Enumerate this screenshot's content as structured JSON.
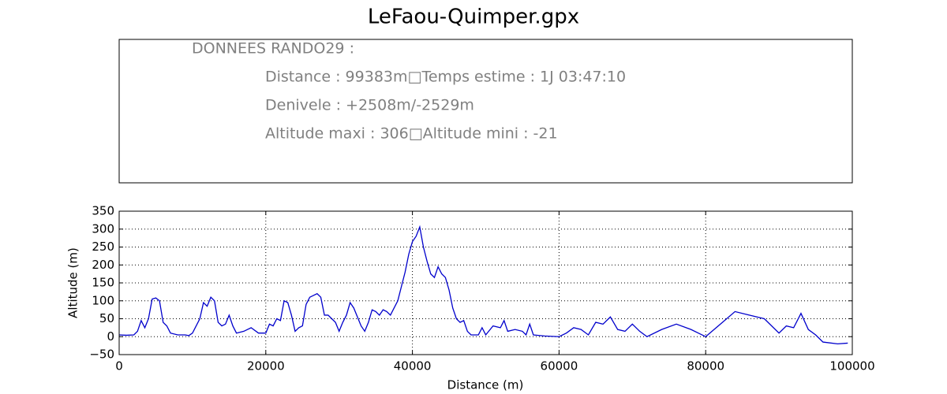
{
  "title": "LeFaou-Quimper.gpx",
  "info": {
    "heading": "DONNEES RANDO29  :",
    "lines": [
      "Distance : 99383m□Temps estime : 1J 03:47:10",
      "Denivele : +2508m/-2529m",
      "Altitude maxi : 306□Altitude mini : -21"
    ]
  },
  "chart_data": {
    "type": "line",
    "xlabel": "Distance (m)",
    "ylabel": "Altitude (m)",
    "color": "#0000cc",
    "grid": true,
    "xlim": [
      0,
      100000
    ],
    "ylim": [
      -50,
      350
    ],
    "xticks": [
      0,
      20000,
      40000,
      60000,
      80000,
      100000
    ],
    "yticks": [
      {
        "value": -50,
        "label": "−50"
      },
      0,
      50,
      100,
      150,
      200,
      250,
      300,
      350
    ],
    "x": [
      0,
      1000,
      2000,
      2500,
      3000,
      3500,
      4000,
      4500,
      5000,
      5500,
      6000,
      6500,
      7000,
      8000,
      9000,
      9500,
      10000,
      11000,
      11500,
      12000,
      12500,
      13000,
      13500,
      14000,
      14500,
      15000,
      15500,
      16000,
      17000,
      18000,
      19000,
      20000,
      20500,
      21000,
      21500,
      22000,
      22500,
      23000,
      23500,
      24000,
      24500,
      25000,
      25500,
      26000,
      27000,
      27500,
      28000,
      28500,
      29000,
      29500,
      30000,
      30500,
      31000,
      31500,
      32000,
      33000,
      33500,
      34000,
      34500,
      35000,
      35500,
      36000,
      36500,
      37000,
      37500,
      38000,
      39000,
      39500,
      40000,
      40500,
      41000,
      41500,
      42000,
      42500,
      43000,
      43500,
      44000,
      44500,
      45000,
      45500,
      46000,
      46500,
      47000,
      47500,
      48000,
      49000,
      49500,
      50000,
      51000,
      52000,
      52500,
      53000,
      54000,
      55000,
      55500,
      56000,
      56500,
      58000,
      60000,
      61000,
      62000,
      63000,
      64000,
      65000,
      66000,
      67000,
      68000,
      69000,
      70000,
      71000,
      72000,
      74000,
      76000,
      78000,
      80000,
      82000,
      84000,
      86000,
      88000,
      90000,
      91000,
      92000,
      93000,
      94000,
      95000,
      96000,
      98000,
      99383
    ],
    "values": [
      5,
      4,
      5,
      15,
      45,
      25,
      50,
      105,
      108,
      100,
      40,
      30,
      10,
      5,
      5,
      3,
      10,
      50,
      95,
      85,
      110,
      100,
      40,
      30,
      35,
      60,
      30,
      10,
      15,
      25,
      10,
      10,
      35,
      30,
      50,
      45,
      100,
      95,
      60,
      15,
      25,
      30,
      90,
      110,
      120,
      110,
      60,
      60,
      50,
      40,
      15,
      40,
      60,
      95,
      80,
      30,
      15,
      40,
      75,
      70,
      60,
      75,
      70,
      60,
      80,
      100,
      180,
      230,
      265,
      280,
      306,
      250,
      210,
      175,
      165,
      195,
      175,
      165,
      130,
      80,
      50,
      40,
      45,
      15,
      5,
      5,
      25,
      5,
      30,
      25,
      45,
      15,
      20,
      15,
      5,
      35,
      5,
      2,
      0,
      10,
      25,
      20,
      5,
      40,
      35,
      55,
      20,
      15,
      35,
      15,
      0,
      20,
      35,
      20,
      0,
      35,
      70,
      60,
      50,
      10,
      30,
      25,
      65,
      20,
      5,
      -15,
      -20,
      -18
    ]
  }
}
